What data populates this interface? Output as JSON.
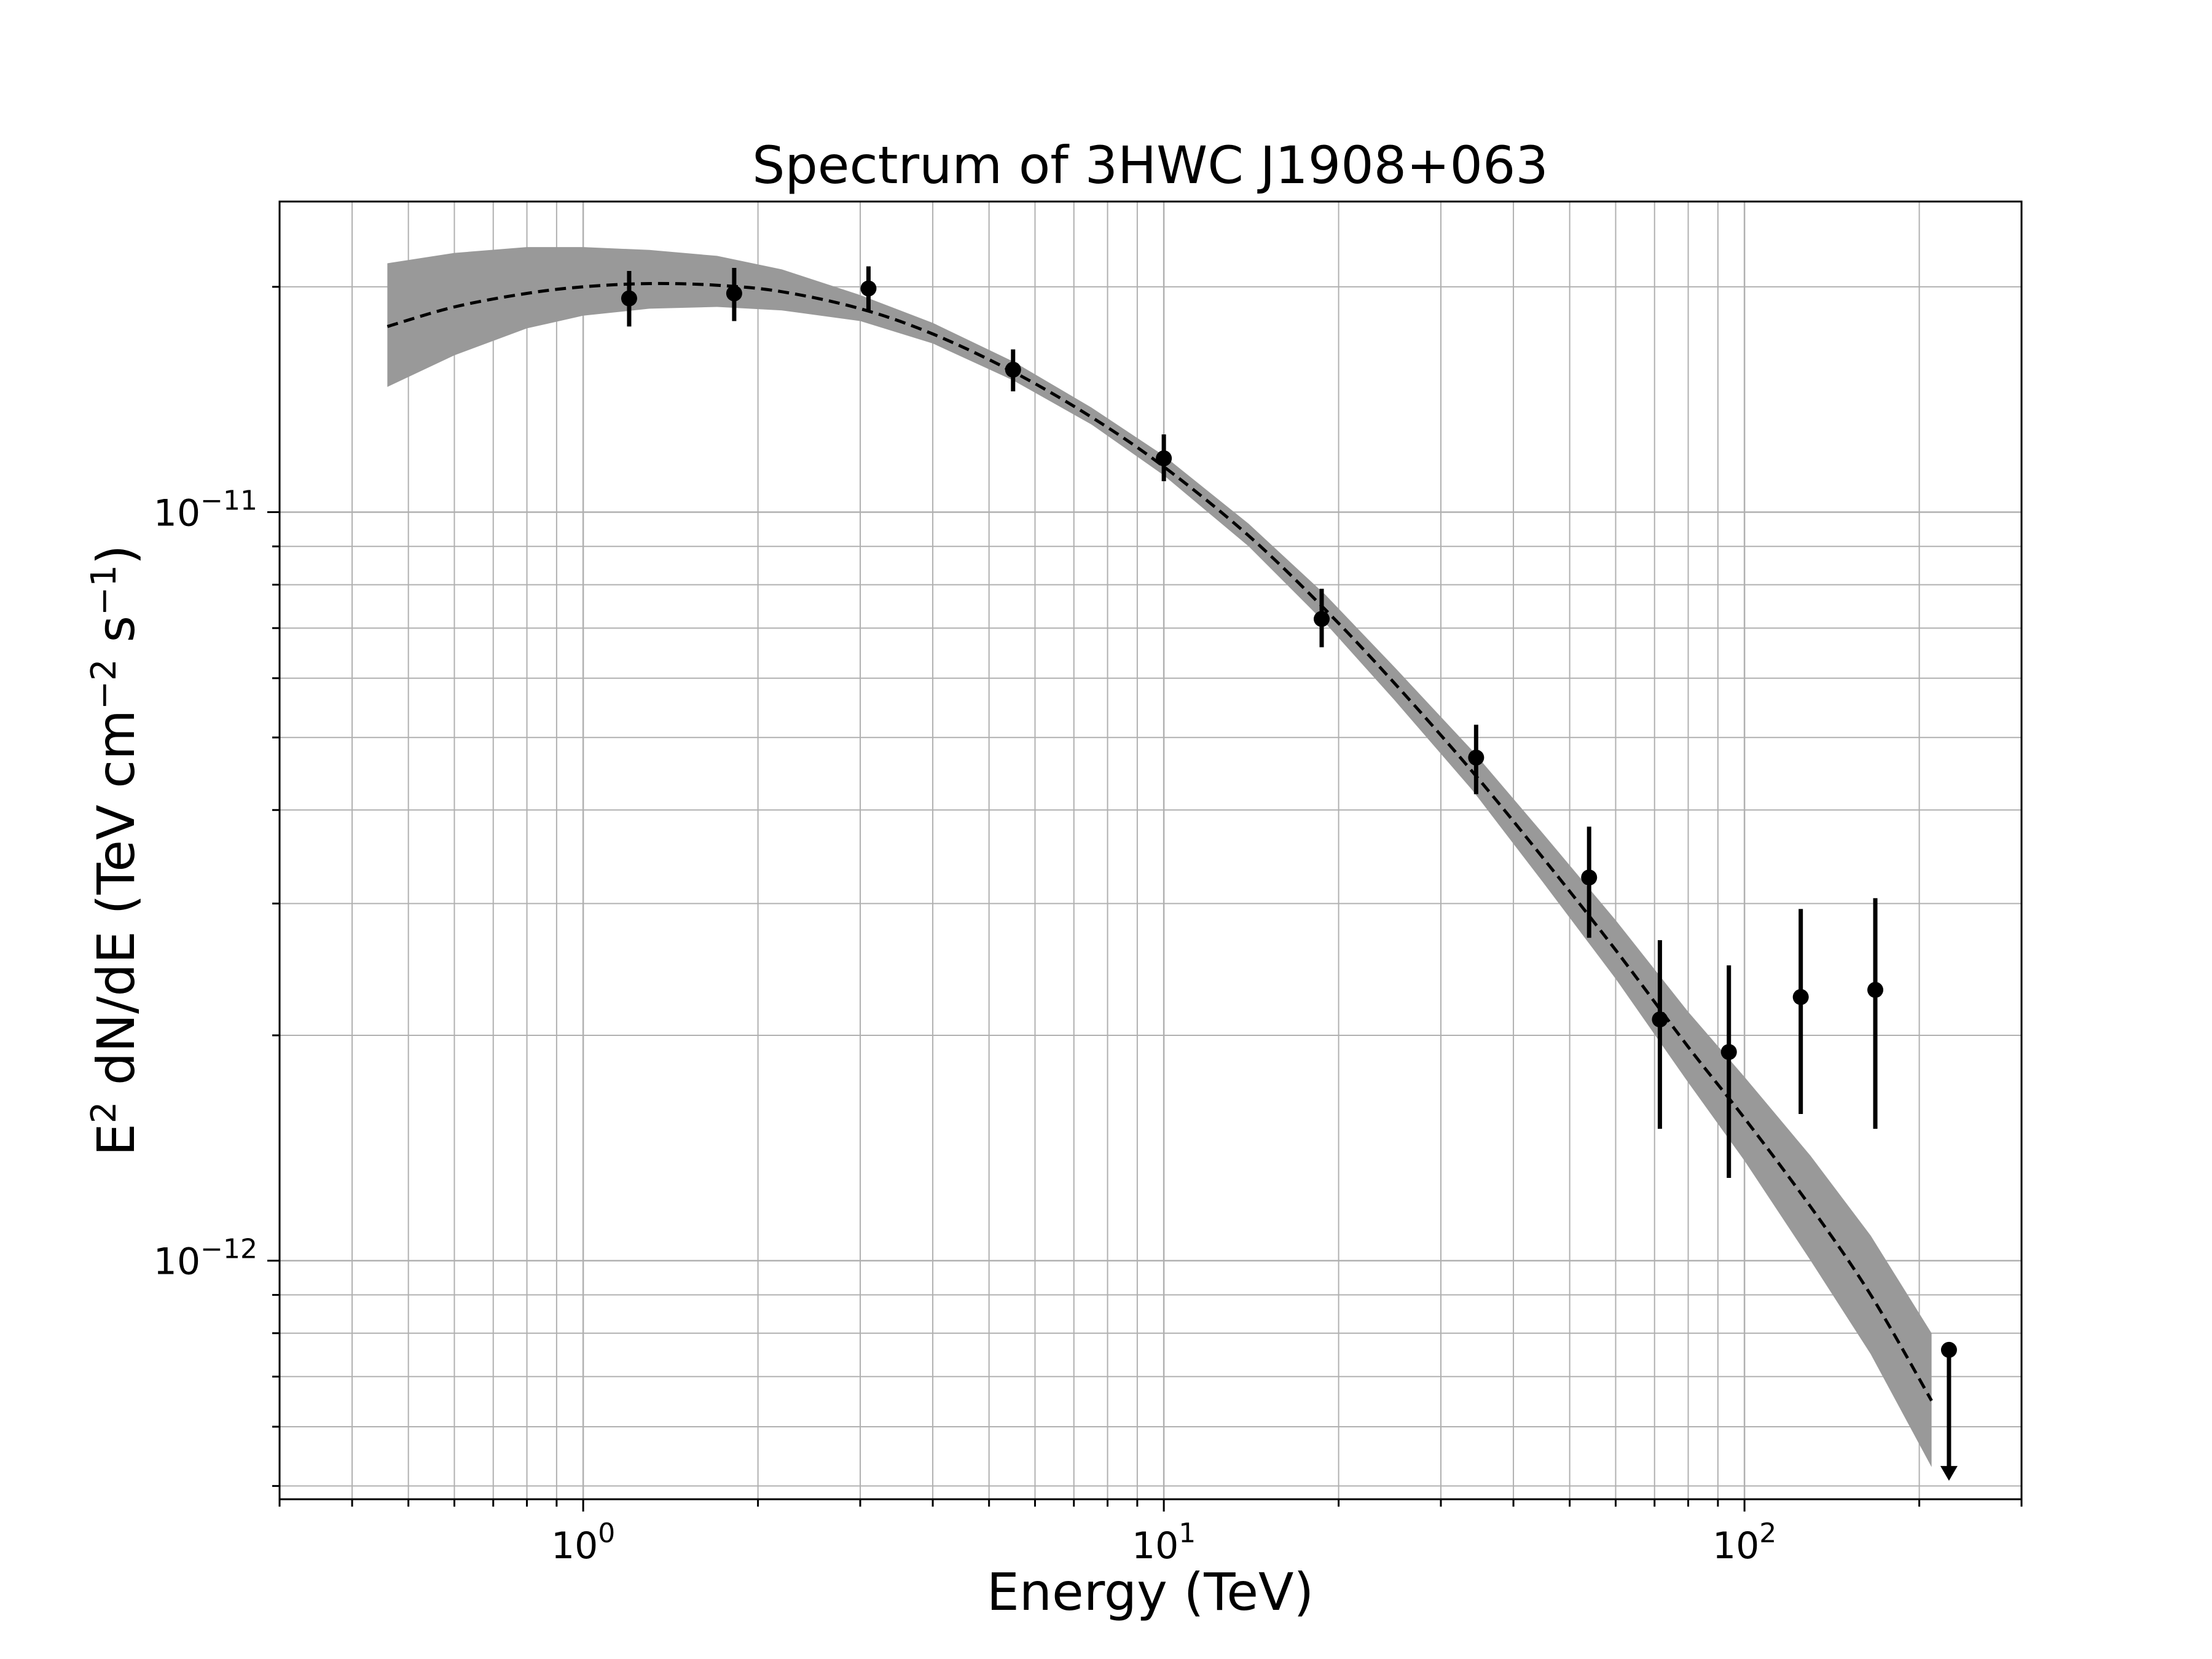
{
  "chart_data": {
    "type": "scatter",
    "title": "Spectrum of 3HWC J1908+063",
    "xlabel": "Energy (TeV)",
    "ylabel": {
      "text_before": "E",
      "sup1": "2",
      "text_mid": " dN/dE (TeV cm",
      "sup2": "−2",
      "text_mid2": " s",
      "sup3": "−1",
      "text_after": ")"
    },
    "xscale": "log",
    "yscale": "log",
    "xlim": [
      0.3,
      300
    ],
    "ylim": [
      4.8e-13,
      2.6e-11
    ],
    "grid": true,
    "x_ticks": [
      {
        "value": 1,
        "base": "10",
        "exp": "0"
      },
      {
        "value": 10,
        "base": "10",
        "exp": "1"
      },
      {
        "value": 100,
        "base": "10",
        "exp": "2"
      }
    ],
    "y_ticks": [
      {
        "value": 1e-11,
        "base": "10",
        "exp": "−11"
      },
      {
        "value": 1e-12,
        "base": "10",
        "exp": "−12"
      }
    ],
    "points": [
      {
        "x": 1.2,
        "y": 1.93e-11,
        "ylo": 1.77e-11,
        "yhi": 2.1e-11
      },
      {
        "x": 1.82,
        "y": 1.96e-11,
        "ylo": 1.8e-11,
        "yhi": 2.12e-11
      },
      {
        "x": 3.1,
        "y": 1.99e-11,
        "ylo": 1.86e-11,
        "yhi": 2.13e-11
      },
      {
        "x": 5.5,
        "y": 1.55e-11,
        "ylo": 1.45e-11,
        "yhi": 1.65e-11
      },
      {
        "x": 10.0,
        "y": 1.18e-11,
        "ylo": 1.1e-11,
        "yhi": 1.27e-11
      },
      {
        "x": 18.7,
        "y": 7.2e-12,
        "ylo": 6.6e-12,
        "yhi": 7.9e-12
      },
      {
        "x": 34.5,
        "y": 4.7e-12,
        "ylo": 4.2e-12,
        "yhi": 5.2e-12
      },
      {
        "x": 54.0,
        "y": 3.25e-12,
        "ylo": 2.7e-12,
        "yhi": 3.8e-12
      },
      {
        "x": 71.5,
        "y": 2.1e-12,
        "ylo": 1.5e-12,
        "yhi": 2.68e-12
      },
      {
        "x": 94.0,
        "y": 1.9e-12,
        "ylo": 1.29e-12,
        "yhi": 2.48e-12
      },
      {
        "x": 125.0,
        "y": 2.25e-12,
        "ylo": 1.57e-12,
        "yhi": 2.95e-12
      },
      {
        "x": 168.0,
        "y": 2.3e-12,
        "ylo": 1.5e-12,
        "yhi": 3.05e-12
      }
    ],
    "upper_limits": [
      {
        "x": 225.0,
        "y": 7.6e-13,
        "to": 5.1e-13
      }
    ],
    "model": {
      "line_style": "dashed",
      "x": [
        0.46,
        0.6,
        0.8,
        1.0,
        1.3,
        1.7,
        2.2,
        3.0,
        4.0,
        5.5,
        7.5,
        10,
        14,
        19,
        25,
        34,
        45,
        60,
        80,
        100,
        130,
        165,
        210
      ],
      "y": [
        1.77e-11,
        1.88e-11,
        1.96e-11,
        2e-11,
        2.02e-11,
        2.01e-11,
        1.97e-11,
        1.87e-11,
        1.73e-11,
        1.54e-11,
        1.34e-11,
        1.15e-11,
        9.3e-12,
        7.4e-12,
        5.9e-12,
        4.5e-12,
        3.45e-12,
        2.6e-12,
        1.93e-12,
        1.55e-12,
        1.18e-12,
        9e-13,
        6.5e-13
      ],
      "band_lower": [
        1.47e-11,
        1.62e-11,
        1.76e-11,
        1.83e-11,
        1.87e-11,
        1.88e-11,
        1.86e-11,
        1.8e-11,
        1.68e-11,
        1.5e-11,
        1.31e-11,
        1.12e-11,
        9e-12,
        7.1e-12,
        5.6e-12,
        4.25e-12,
        3.2e-12,
        2.38e-12,
        1.73e-12,
        1.36e-12,
        1e-12,
        7.5e-13,
        5.3e-13
      ],
      "band_upper": [
        2.15e-11,
        2.22e-11,
        2.26e-11,
        2.26e-11,
        2.24e-11,
        2.2e-11,
        2.11e-11,
        1.95e-11,
        1.79e-11,
        1.59e-11,
        1.38e-11,
        1.19e-11,
        9.65e-12,
        7.75e-12,
        6.2e-12,
        4.8e-12,
        3.72e-12,
        2.85e-12,
        2.15e-12,
        1.76e-12,
        1.38e-12,
        1.08e-12,
        8e-13
      ],
      "band_color": "#999999",
      "line_color": "#000000"
    },
    "grid_color": "#b0b0b0",
    "marker_color": "#000000"
  }
}
